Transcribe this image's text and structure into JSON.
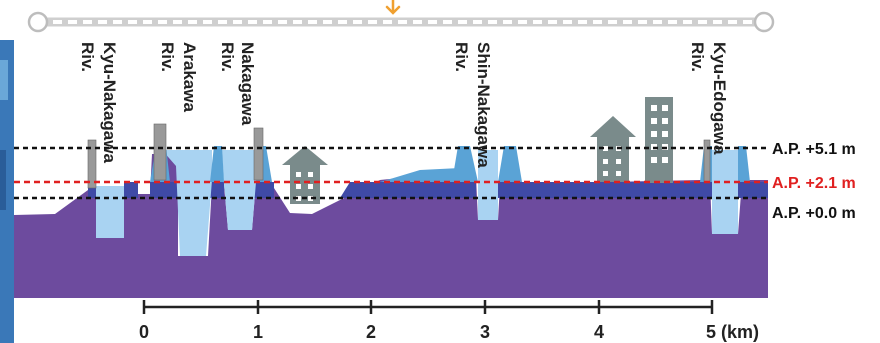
{
  "rivers": [
    {
      "name": "Kyu-Nakagawa",
      "suffix": "Riv."
    },
    {
      "name": "Arakawa",
      "suffix": "Riv."
    },
    {
      "name": "Nakagawa",
      "suffix": "Riv."
    },
    {
      "name": "Shin-Nakagawa",
      "suffix": "Riv."
    },
    {
      "name": "Kyu-Edogawa",
      "suffix": "Riv."
    }
  ],
  "levels": [
    {
      "label": "A.P. +5.1 m",
      "color": "#111111"
    },
    {
      "label": "A.P. +2.1 m",
      "color": "#e02020"
    },
    {
      "label": "A.P. +0.0 m",
      "color": "#111111"
    }
  ],
  "axis": {
    "ticks": [
      "0",
      "1",
      "2",
      "3",
      "4",
      "5 (km)"
    ]
  },
  "colors": {
    "ground": "#6d4b9e",
    "sea_level_band": "#3f4aa6",
    "water": "#a9d3f2",
    "embankment": "#5aa3d6",
    "wall": "#999999",
    "building": "#7a8b8b",
    "marker": "#f0a030",
    "slider_track": "#cfcfcf"
  },
  "icons": {
    "scroll_marker": "down-arrow-icon",
    "slider_start": "slider-handle",
    "slider_end": "slider-handle",
    "house": "house-icon",
    "building": "building-icon"
  }
}
